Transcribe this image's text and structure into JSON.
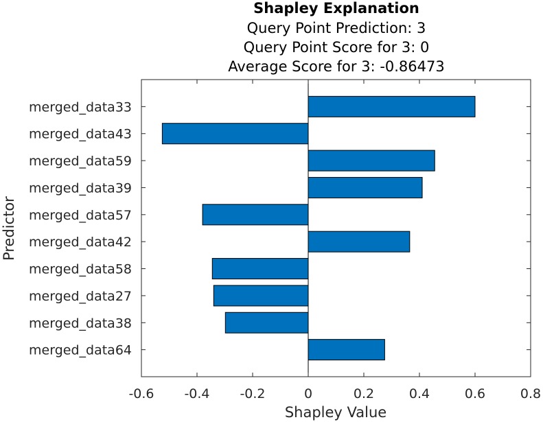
{
  "chart_data": {
    "type": "bar",
    "orientation": "horizontal",
    "title": "Shapley Explanation",
    "subtitles": [
      "Query Point Prediction: 3",
      "Query Point Score for 3: 0",
      "Average Score for 3: -0.86473"
    ],
    "xlabel": "Shapley Value",
    "ylabel": "Predictor",
    "xlim": [
      -0.6,
      0.8
    ],
    "xticks": [
      -0.6,
      -0.4,
      -0.2,
      0,
      0.2,
      0.4,
      0.6,
      0.8
    ],
    "xtick_labels": [
      "-0.6",
      "-0.4",
      "-0.2",
      "0",
      "0.2",
      "0.4",
      "0.6",
      "0.8"
    ],
    "categories": [
      "merged_data33",
      "merged_data43",
      "merged_data59",
      "merged_data39",
      "merged_data57",
      "merged_data42",
      "merged_data58",
      "merged_data27",
      "merged_data38",
      "merged_data64"
    ],
    "values": [
      0.6,
      -0.525,
      0.455,
      0.41,
      -0.38,
      0.365,
      -0.345,
      -0.34,
      -0.298,
      0.275
    ],
    "bar_color": "#0072BD",
    "grid": false,
    "legend": "none"
  }
}
